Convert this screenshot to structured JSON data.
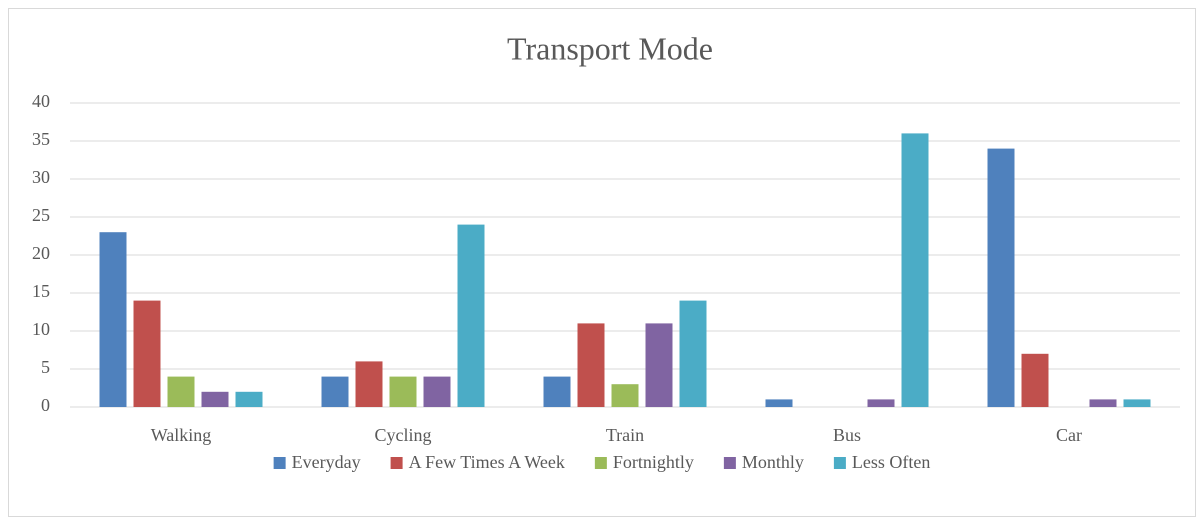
{
  "chart_data": {
    "type": "bar",
    "title": "Transport Mode",
    "categories": [
      "Walking",
      "Cycling",
      "Train",
      "Bus",
      "Car"
    ],
    "series": [
      {
        "name": "Everyday",
        "color": "#4f81bd",
        "values": [
          23,
          4,
          4,
          1,
          34
        ]
      },
      {
        "name": "A Few Times A Week",
        "color": "#c0504d",
        "values": [
          14,
          6,
          11,
          0,
          7
        ]
      },
      {
        "name": "Fortnightly",
        "color": "#9bbb59",
        "values": [
          4,
          4,
          3,
          0,
          0
        ]
      },
      {
        "name": "Monthly",
        "color": "#8064a2",
        "values": [
          2,
          4,
          11,
          1,
          1
        ]
      },
      {
        "name": "Less Often",
        "color": "#4bacc6",
        "values": [
          2,
          24,
          14,
          36,
          1
        ]
      }
    ],
    "ylim": [
      0,
      40
    ],
    "yticks": [
      0,
      5,
      10,
      15,
      20,
      25,
      30,
      35,
      40
    ],
    "grid": true,
    "legend": "bottom"
  }
}
